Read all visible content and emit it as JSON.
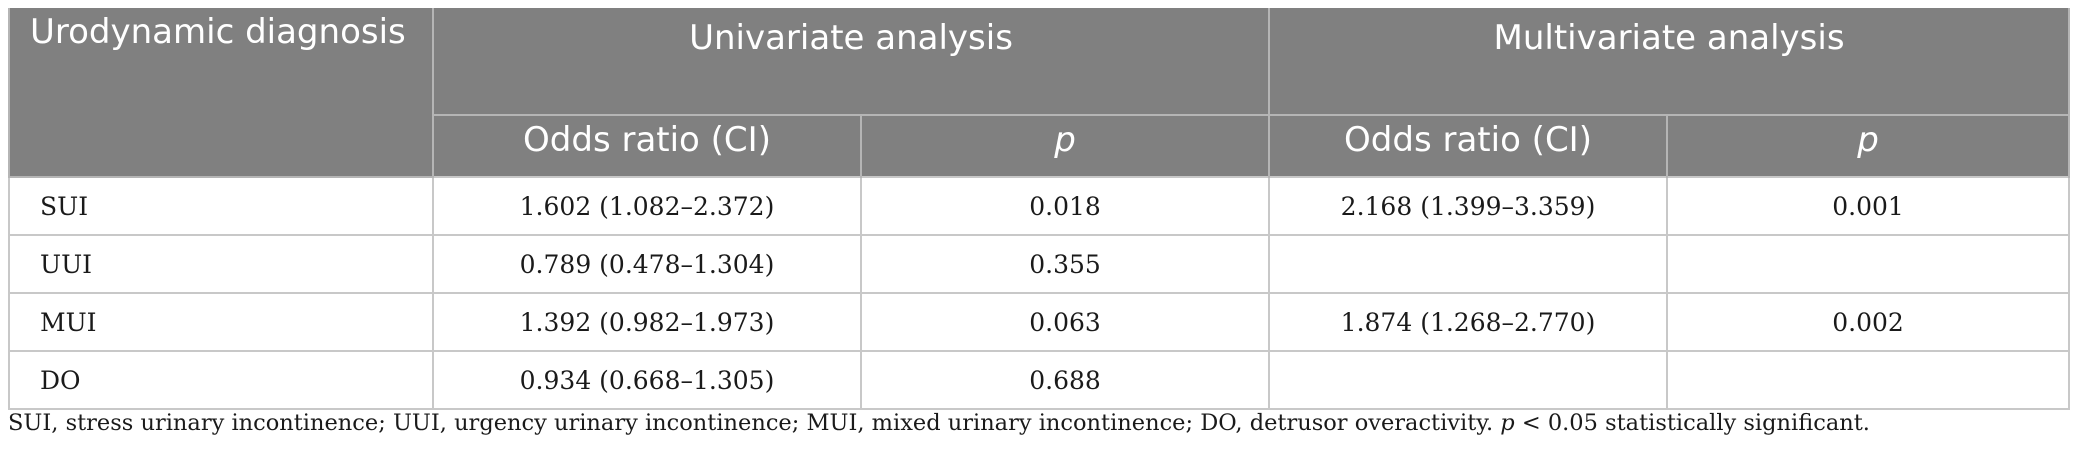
{
  "table": {
    "header": {
      "row_label": "Urodynamic diagnosis",
      "group_univariate": "Univariate analysis",
      "group_multivariate": "Multivariate analysis",
      "uni_or": "Odds ratio (CI)",
      "uni_p": "p",
      "multi_or": "Odds ratio (CI)",
      "multi_p": "p"
    },
    "rows": [
      {
        "diagnosis": "SUI",
        "uni_or": "1.602 (1.082–2.372)",
        "uni_p": "0.018",
        "multi_or": "2.168 (1.399–3.359)",
        "multi_p": "0.001"
      },
      {
        "diagnosis": "UUI",
        "uni_or": "0.789 (0.478–1.304)",
        "uni_p": "0.355",
        "multi_or": "",
        "multi_p": ""
      },
      {
        "diagnosis": "MUI",
        "uni_or": "1.392 (0.982–1.973)",
        "uni_p": "0.063",
        "multi_or": "1.874 (1.268–2.770)",
        "multi_p": "0.002"
      },
      {
        "diagnosis": "DO",
        "uni_or": "0.934 (0.668–1.305)",
        "uni_p": "0.688",
        "multi_or": "",
        "multi_p": ""
      }
    ]
  },
  "footnote": {
    "text": "SUI, stress urinary incontinence; UUI, urgency urinary incontinence; MUI, mixed urinary incontinence; DO, detrusor overactivity. ",
    "p_symbol": "p",
    "tail": " < 0.05 statistically significant."
  }
}
